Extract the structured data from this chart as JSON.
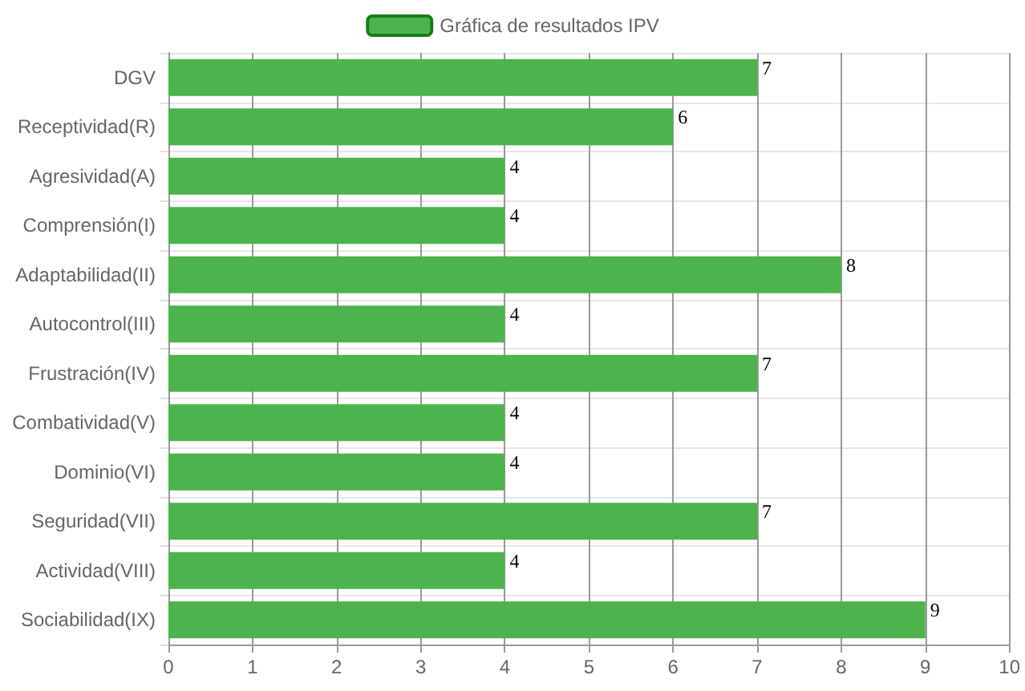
{
  "chart_data": {
    "type": "bar",
    "orientation": "horizontal",
    "categories": [
      "DGV",
      "Receptividad(R)",
      "Agresividad(A)",
      "Comprensión(I)",
      "Adaptabilidad(II)",
      "Autocontrol(III)",
      "Frustración(IV)",
      "Combatividad(V)",
      "Dominio(VI)",
      "Seguridad(VII)",
      "Actividad(VIII)",
      "Sociabilidad(IX)"
    ],
    "series": [
      {
        "name": "Gráfica de resultados IPV",
        "color": "#4db34d",
        "values": [
          7,
          6,
          4,
          4,
          8,
          4,
          7,
          4,
          4,
          7,
          4,
          9
        ]
      }
    ],
    "xlim": [
      0,
      10
    ],
    "xticks": [
      0,
      1,
      2,
      3,
      4,
      5,
      6,
      7,
      8,
      9,
      10
    ],
    "grid": true,
    "legend": "top",
    "data_labels": true
  }
}
